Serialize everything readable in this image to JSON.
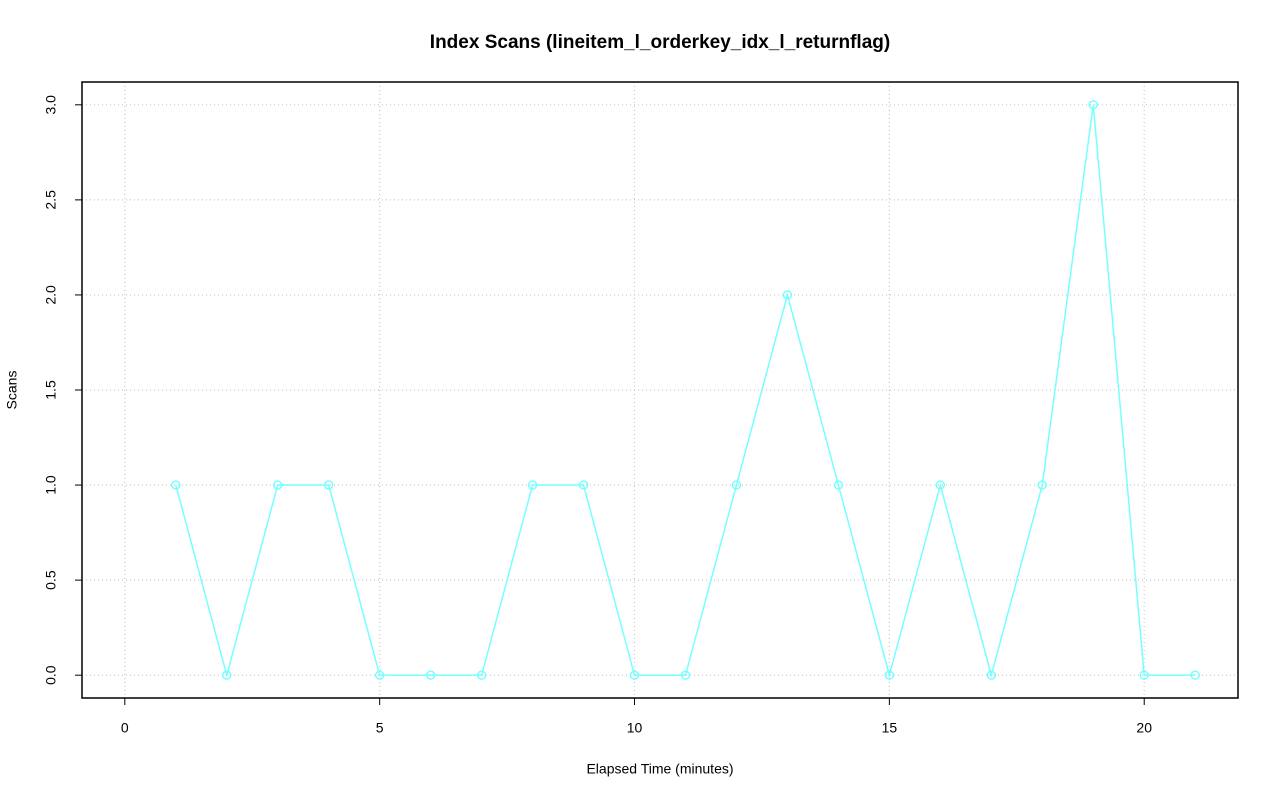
{
  "chart_data": {
    "type": "line",
    "title": "Index Scans (lineitem_l_orderkey_idx_l_returnflag)",
    "x_label": "Elapsed Time (minutes)",
    "y_label": "Scans",
    "x": [
      1,
      2,
      3,
      4,
      5,
      6,
      7,
      8,
      9,
      10,
      11,
      12,
      13,
      14,
      15,
      16,
      17,
      18,
      19,
      20,
      21
    ],
    "series": [
      {
        "name": "Scans",
        "color": "#77ffff",
        "values": [
          1,
          0,
          1,
          1,
          0,
          0,
          0,
          1,
          1,
          0,
          0,
          1,
          2,
          1,
          0,
          1,
          0,
          1,
          3,
          0,
          0
        ]
      }
    ],
    "xlim": [
      -0.84,
      21.84
    ],
    "xticks": [
      0,
      5,
      10,
      15,
      20
    ],
    "ylim": [
      -0.12,
      3.12
    ],
    "yticks": [
      {
        "value": 0,
        "label": "0.0"
      },
      {
        "value": 0.5,
        "label": "0.5"
      },
      {
        "value": 1,
        "label": "1.0"
      },
      {
        "value": 1.5,
        "label": "1.5"
      },
      {
        "value": 2,
        "label": "2.0"
      },
      {
        "value": 2.5,
        "label": "2.5"
      },
      {
        "value": 3,
        "label": "3.0"
      }
    ],
    "grid": true
  }
}
